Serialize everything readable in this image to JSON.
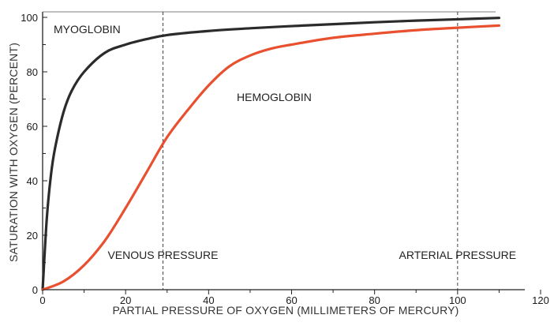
{
  "chart_data": {
    "type": "line",
    "xlabel": "PARTIAL PRESSURE OF OXYGEN (MILLIMETERS OF MERCURY)",
    "ylabel": "SATURATION WITH OXYGEN (PERCENT)",
    "xlim": [
      0,
      120
    ],
    "ylim": [
      0,
      100
    ],
    "x_ticks": [
      0,
      20,
      40,
      60,
      80,
      100,
      120
    ],
    "y_ticks": [
      0,
      20,
      40,
      60,
      80,
      100
    ],
    "grid": false,
    "series": [
      {
        "name": "MYOGLOBIN",
        "color": "#2b2b2b",
        "x": [
          0,
          1,
          2,
          3,
          5,
          7,
          10,
          15,
          20,
          25,
          30,
          40,
          50,
          60,
          70,
          80,
          90,
          100,
          110
        ],
        "y": [
          0,
          26,
          42,
          52,
          65,
          73,
          80,
          87,
          90,
          92,
          93.5,
          95,
          96,
          96.8,
          97.5,
          98.2,
          98.8,
          99.3,
          99.8
        ]
      },
      {
        "name": "HEMOGLOBIN",
        "color": "#e8502f",
        "x": [
          0,
          5,
          10,
          15,
          20,
          25,
          30,
          35,
          40,
          45,
          50,
          55,
          60,
          70,
          80,
          90,
          100,
          110
        ],
        "y": [
          0,
          3,
          9,
          18,
          30,
          43,
          56,
          66,
          75,
          82,
          86,
          88.5,
          90,
          92.5,
          94,
          95.3,
          96.2,
          97
        ]
      }
    ],
    "reference_lines": [
      {
        "x": 29,
        "label": "VENOUS PRESSURE"
      },
      {
        "x": 100,
        "label": "ARTERIAL PRESSURE"
      }
    ],
    "annotations": [
      {
        "text": "MYOGLOBIN"
      },
      {
        "text": "HEMOGLOBIN"
      }
    ]
  }
}
